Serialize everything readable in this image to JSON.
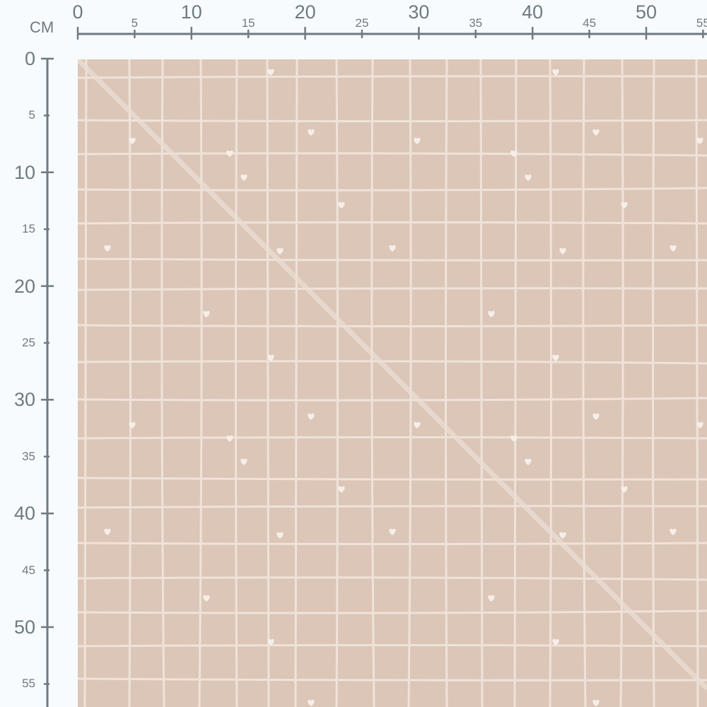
{
  "ruler": {
    "unit": "CM",
    "horizontal_ticks": [
      "0",
      "5",
      "10",
      "15",
      "20",
      "25",
      "30",
      "35",
      "40",
      "45",
      "50",
      "55"
    ],
    "vertical_ticks": [
      "0",
      "5",
      "10",
      "15",
      "20",
      "25",
      "30",
      "35",
      "40",
      "45",
      "50",
      "55"
    ],
    "color": "#6f7a82"
  },
  "fabric": {
    "pattern": "hand-drawn grid with small hearts",
    "background_color": "#dcc6b8",
    "line_color": "#efe3d9",
    "heart-icon": "heart-icon"
  }
}
